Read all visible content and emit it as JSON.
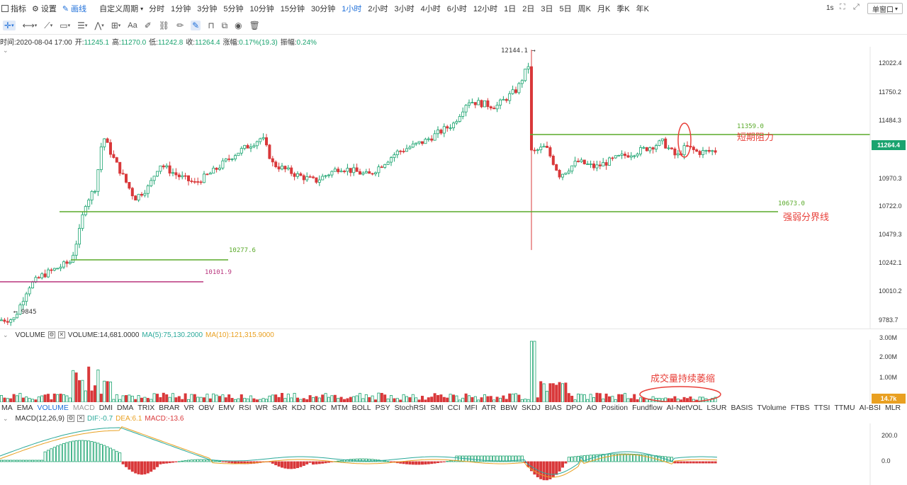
{
  "toolbar": {
    "indicators_label": "指标",
    "settings_label": "设置",
    "draw_label": "画线",
    "custom_period_label": "自定义周期",
    "periods": [
      "分时",
      "1分钟",
      "3分钟",
      "5分钟",
      "10分钟",
      "15分钟",
      "30分钟",
      "1小时",
      "2小时",
      "3小时",
      "4小时",
      "6小时",
      "12小时",
      "1日",
      "2日",
      "3日",
      "5日",
      "周K",
      "月K",
      "季K",
      "年K"
    ],
    "active_period": "1小时",
    "refresh_rate": "1s",
    "window_mode": "单窗口"
  },
  "ohlc": {
    "time_label": "时间:",
    "time": "2020-08-04 17:00",
    "open_label": "开:",
    "open": "11245.1",
    "high_label": "高:",
    "high": "11270.0",
    "low_label": "低:",
    "low": "11242.8",
    "close_label": "收:",
    "close": "11264.4",
    "change_label": "涨幅:",
    "change": "0.17%(19.3)",
    "amplitude_label": "振幅:",
    "amplitude": "0.24%"
  },
  "price_axis": {
    "ticks": [
      "12022.4",
      "11750.2",
      "11484.3",
      "11264.4",
      "10970.3",
      "10722.0",
      "10479.3",
      "10242.1",
      "10010.2",
      "9783.7"
    ],
    "current_price": "11264.4",
    "colors": {
      "up": "#1aa36f",
      "down": "#d9383a",
      "support_line": "#5aaa2a",
      "pink_line": "#b8357d"
    }
  },
  "annotations": {
    "peak_label": "12144.1",
    "low_label": "9845",
    "resistance_value": "11359.0",
    "resistance_text": "短期阻力",
    "divide_value": "10673.0",
    "divide_text": "强弱分界线",
    "support1_value": "10277.6",
    "support2_value": "10101.9",
    "volume_note": "成交量持续萎缩"
  },
  "volume": {
    "title": "VOLUME",
    "value": "VOLUME:14,681.0000",
    "ma5": "MA(5):75,130.2000",
    "ma10": "MA(10):121,315.9000",
    "axis_ticks": [
      "3.00M",
      "2.00M",
      "1.00M"
    ],
    "current": "14.7k"
  },
  "indicators": {
    "items": [
      "MA",
      "EMA",
      "VOLUME",
      "MACD",
      "DMI",
      "DMA",
      "TRIX",
      "BRAR",
      "VR",
      "OBV",
      "EMV",
      "RSI",
      "WR",
      "SAR",
      "KDJ",
      "ROC",
      "MTM",
      "BOLL",
      "PSY",
      "StochRSI",
      "SMI",
      "CCI",
      "MFI",
      "ATR",
      "BBW",
      "SKDJ",
      "BIAS",
      "DPO",
      "AO",
      "Position",
      "Fundflow",
      "AI-NetVOL",
      "LSUR",
      "BASIS",
      "TVolume",
      "FTBS",
      "TTSI",
      "TTMU",
      "AI-BSI",
      "MLR"
    ],
    "active": "VOLUME",
    "dim": "MACD"
  },
  "macd": {
    "title": "MACD(12,26,9)",
    "dif": "DIF:-0.7",
    "dea": "DEA:6.1",
    "macd": "MACD:-13.6",
    "axis_ticks": [
      "200.0",
      "0.0"
    ]
  }
}
